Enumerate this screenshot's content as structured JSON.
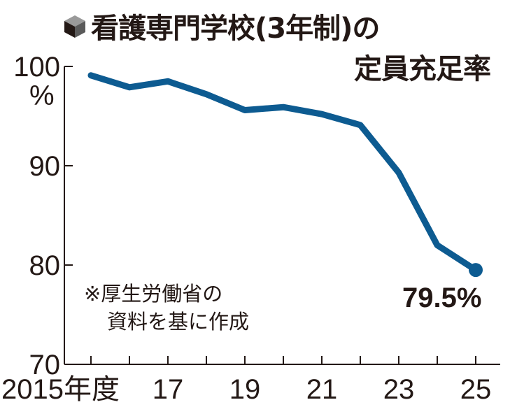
{
  "chart_data": {
    "type": "line",
    "title_line1": "看護専門学校(3年制)の",
    "title_line2": "定員充足率",
    "xlabel": "",
    "ylabel": "%",
    "x": [
      2015,
      2016,
      2017,
      2018,
      2019,
      2020,
      2021,
      2022,
      2023,
      2024,
      2025
    ],
    "x_tick_labels": [
      {
        "x": 2015,
        "label": "2015年度"
      },
      {
        "x": 2017,
        "label": "17"
      },
      {
        "x": 2019,
        "label": "19"
      },
      {
        "x": 2021,
        "label": "21"
      },
      {
        "x": 2023,
        "label": "23"
      },
      {
        "x": 2025,
        "label": "25"
      }
    ],
    "series": [
      {
        "name": "定員充足率",
        "values": [
          99.1,
          97.9,
          98.5,
          97.2,
          95.6,
          95.9,
          95.2,
          94.1,
          89.3,
          82.0,
          79.5
        ],
        "color": "#0d5b91"
      }
    ],
    "y_ticks": [
      {
        "v": 100,
        "label": "100"
      },
      {
        "v": 90,
        "label": "90"
      },
      {
        "v": 80,
        "label": "80"
      },
      {
        "v": 70,
        "label": "70"
      }
    ],
    "y_unit_label": "%",
    "ylim": [
      70,
      100
    ],
    "xlim": [
      2015,
      2025
    ],
    "grid": false,
    "end_label": "79.5%",
    "note_line1": "※厚生労働省の",
    "note_line2": "資料を基に作成",
    "title_icon": "cube-icon"
  }
}
